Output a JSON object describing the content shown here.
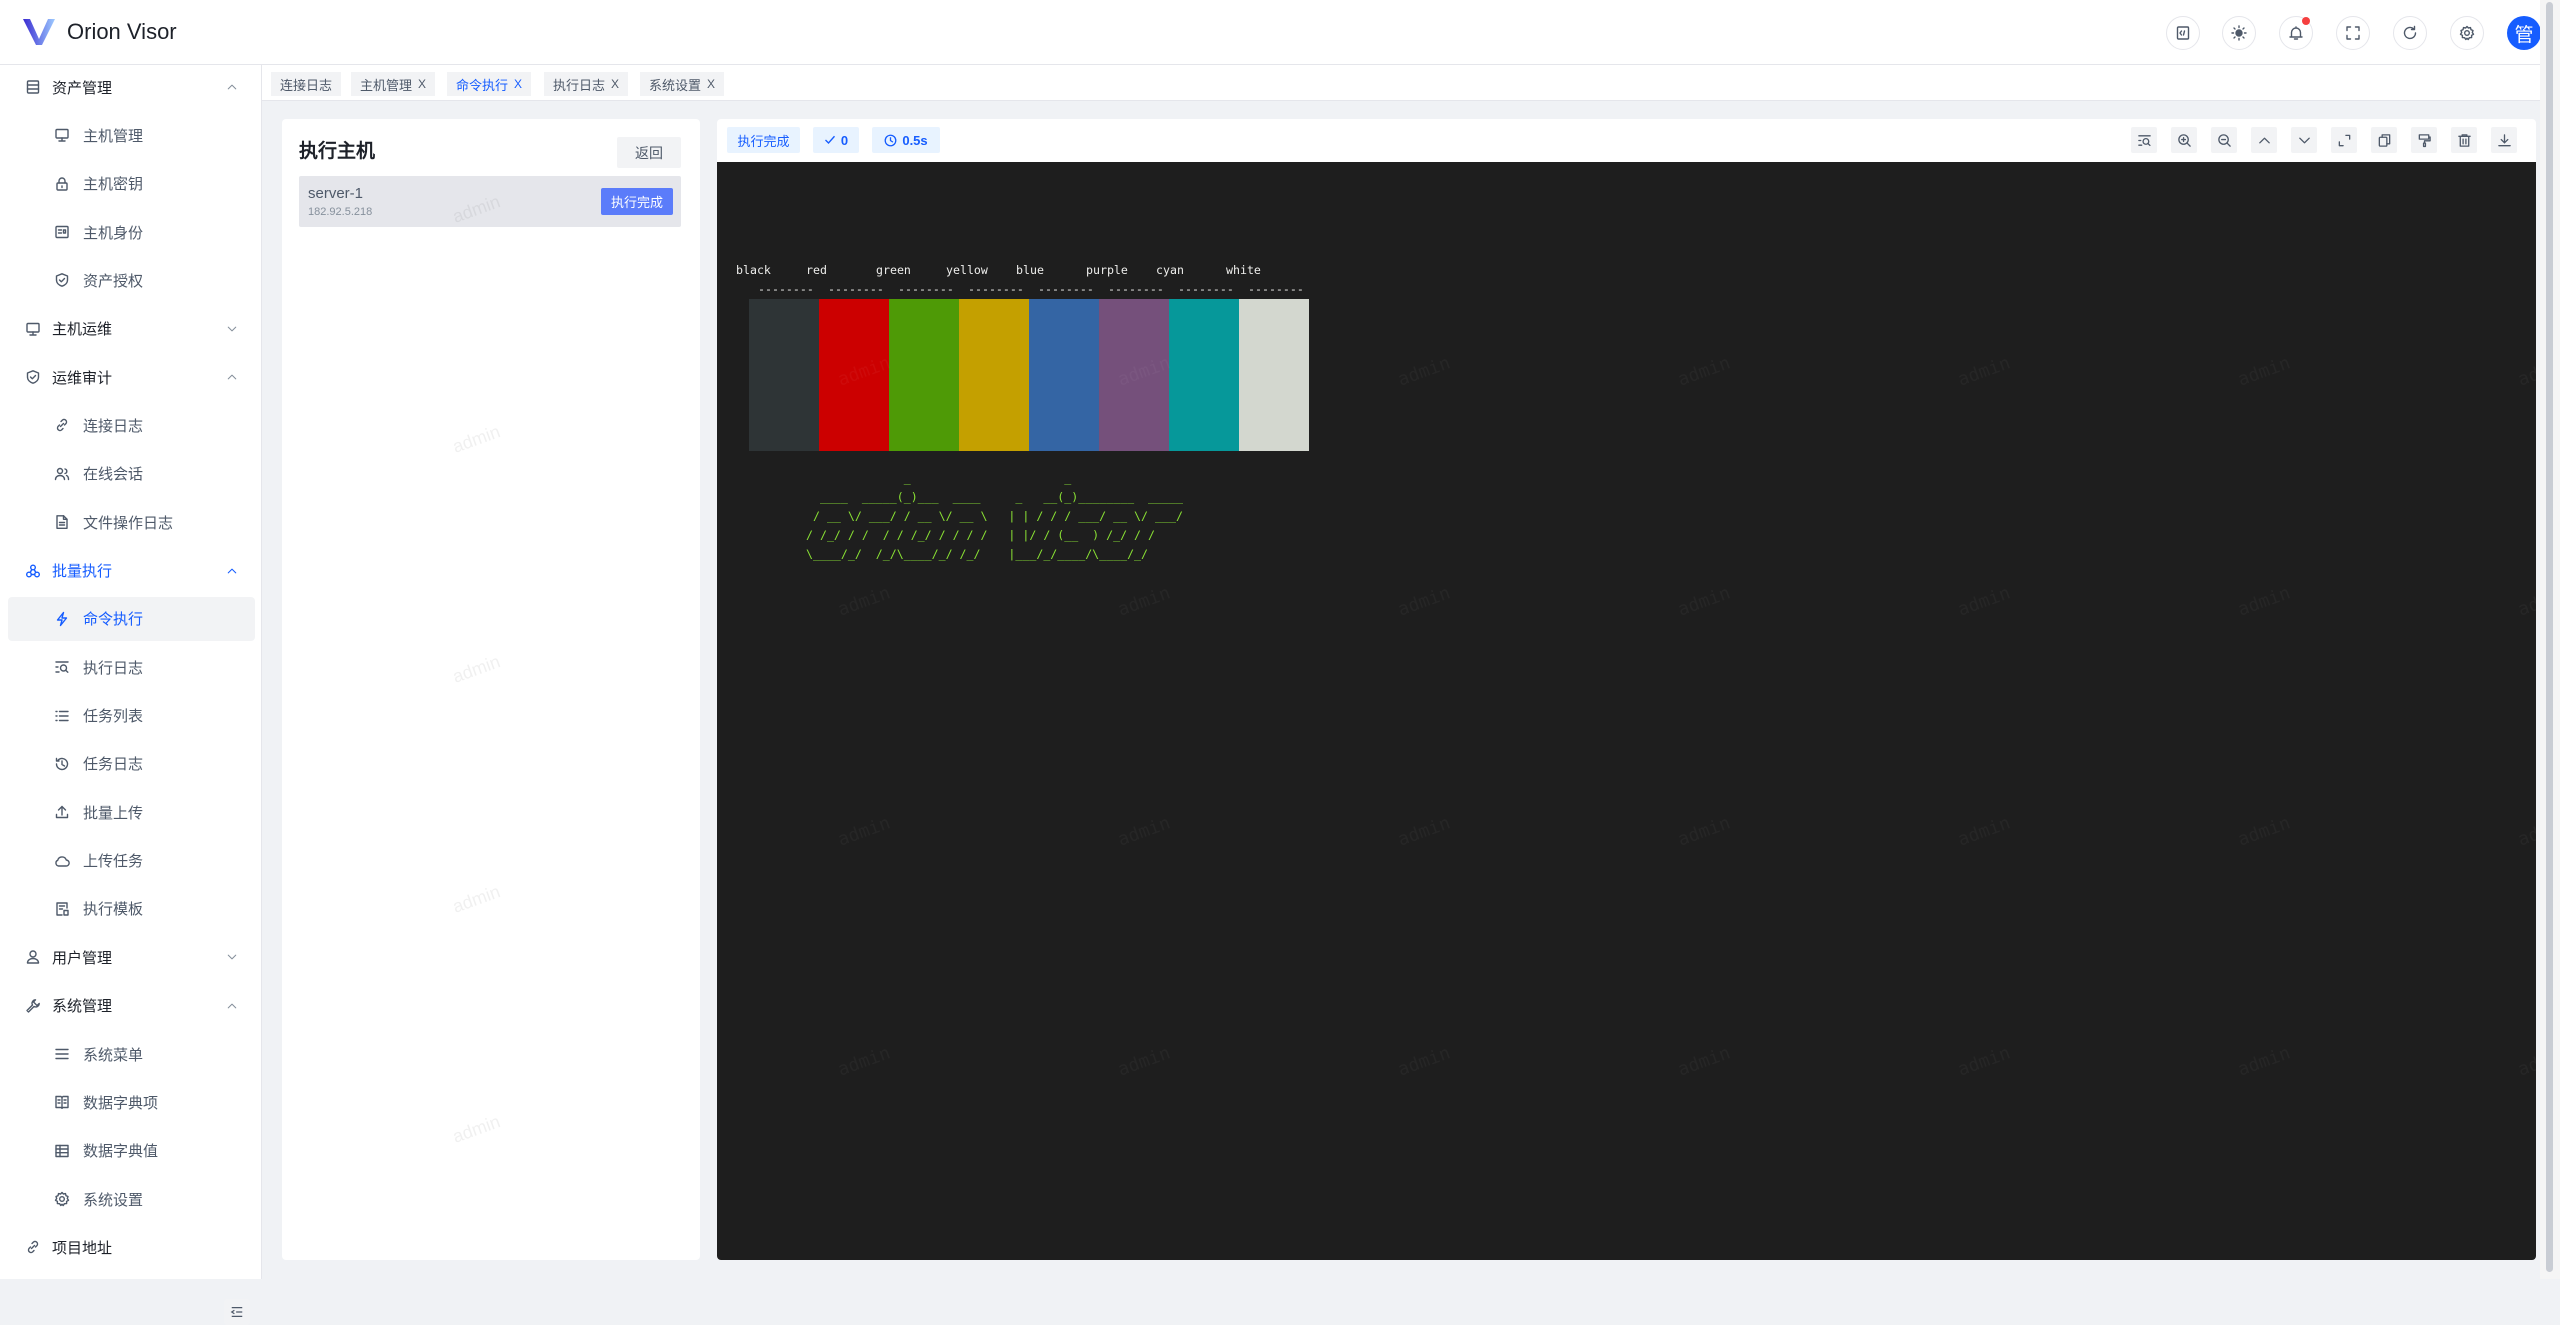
{
  "app": {
    "title": "Orion Visor",
    "avatar_text": "管",
    "watermark": "admin"
  },
  "header_icons": [
    "code-icon",
    "theme-sun-icon",
    "bell-icon",
    "fullscreen-icon",
    "refresh-icon",
    "settings-icon"
  ],
  "sidebar": {
    "items": [
      {
        "label": "资产管理",
        "type": "group",
        "icon": "database",
        "chevron": "up"
      },
      {
        "label": "主机管理",
        "type": "sub",
        "icon": "desktop"
      },
      {
        "label": "主机密钥",
        "type": "sub",
        "icon": "lock"
      },
      {
        "label": "主机身份",
        "type": "sub",
        "icon": "idcard"
      },
      {
        "label": "资产授权",
        "type": "sub",
        "icon": "shield"
      },
      {
        "label": "主机运维",
        "type": "group",
        "icon": "desktop",
        "chevron": "down"
      },
      {
        "label": "运维审计",
        "type": "group",
        "icon": "shield",
        "chevron": "up"
      },
      {
        "label": "连接日志",
        "type": "sub",
        "icon": "link"
      },
      {
        "label": "在线会话",
        "type": "sub",
        "icon": "users"
      },
      {
        "label": "文件操作日志",
        "type": "sub",
        "icon": "file"
      },
      {
        "label": "批量执行",
        "type": "group",
        "icon": "cluster",
        "chevron": "up",
        "highlight": true
      },
      {
        "label": "命令执行",
        "type": "sub",
        "icon": "thunderbolt",
        "active": true
      },
      {
        "label": "执行日志",
        "type": "sub",
        "icon": "list-search"
      },
      {
        "label": "任务列表",
        "type": "sub",
        "icon": "list"
      },
      {
        "label": "任务日志",
        "type": "sub",
        "icon": "history"
      },
      {
        "label": "批量上传",
        "type": "sub",
        "icon": "upload"
      },
      {
        "label": "上传任务",
        "type": "sub",
        "icon": "cloud"
      },
      {
        "label": "执行模板",
        "type": "sub",
        "icon": "template"
      },
      {
        "label": "用户管理",
        "type": "group",
        "icon": "user",
        "chevron": "down"
      },
      {
        "label": "系统管理",
        "type": "group",
        "icon": "tool",
        "chevron": "up"
      },
      {
        "label": "系统菜单",
        "type": "sub",
        "icon": "menu"
      },
      {
        "label": "数据字典项",
        "type": "sub",
        "icon": "book"
      },
      {
        "label": "数据字典值",
        "type": "sub",
        "icon": "table"
      },
      {
        "label": "系统设置",
        "type": "sub",
        "icon": "settings"
      },
      {
        "label": "项目地址",
        "type": "group",
        "icon": "link"
      }
    ]
  },
  "tabs": [
    {
      "label": "连接日志",
      "closable": false
    },
    {
      "label": "主机管理",
      "closable": true
    },
    {
      "label": "命令执行",
      "closable": true,
      "active": true
    },
    {
      "label": "执行日志",
      "closable": true
    },
    {
      "label": "系统设置",
      "closable": true
    }
  ],
  "tab_close": "X",
  "host_panel": {
    "title": "执行主机",
    "back_label": "返回",
    "hosts": [
      {
        "name": "server-1",
        "address": "182.92.5.218",
        "status": "执行完成"
      }
    ]
  },
  "exec": {
    "status": "执行完成",
    "exit_code": "0",
    "duration": "0.5s",
    "toolbar": [
      "search-icon",
      "zoom-in-icon",
      "zoom-out-icon",
      "arrow-up-icon",
      "arrow-down-icon",
      "expand-icon",
      "copy-icon",
      "format-painter-icon",
      "delete-icon",
      "download-icon"
    ]
  },
  "terminal": {
    "colors": [
      {
        "name": "black",
        "hex": "#2e3436"
      },
      {
        "name": "red",
        "hex": "#cc0000"
      },
      {
        "name": "green",
        "hex": "#4e9a06"
      },
      {
        "name": "yellow",
        "hex": "#c4a000"
      },
      {
        "name": "blue",
        "hex": "#3465a4"
      },
      {
        "name": "purple",
        "hex": "#75507b"
      },
      {
        "name": "cyan",
        "hex": "#06989a"
      },
      {
        "name": "white",
        "hex": "#d3d7cf"
      }
    ],
    "dash": "--------",
    "ascii_color": "#8ae234",
    "ascii_art": "              _                      _\n  ____  _____(_)___  ____     _   __(_)________  _____\n / __ \\/ ___/ / __ \\/ __ \\   | | / / / ___/ __ \\/ ___/\n/ /_/ / /  / / /_/ / / / /   | |/ / (__  ) /_/ / /\n\\____/_/  /_/\\____/_/ /_/    |___/_/____/\\____/_/"
  },
  "colors": {
    "accent": "#165dff",
    "terminal_bg": "#1e1e1e"
  }
}
